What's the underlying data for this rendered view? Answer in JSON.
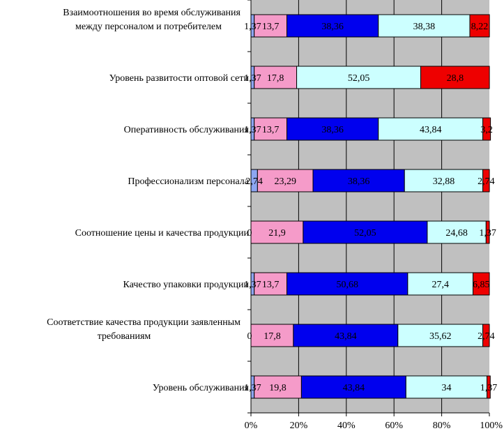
{
  "chart_data": {
    "type": "bar",
    "orientation": "horizontal",
    "stacked": "percent",
    "categories": [
      [
        "Взаимоотношения во время обслуживания",
        "между персоналом и потребителем"
      ],
      [
        "Уровень развитости оптовой сети"
      ],
      [
        "Оперативность обслуживания"
      ],
      [
        "Профессионализм персонала"
      ],
      [
        "Соотношение цены и качества продукции"
      ],
      [
        "Качество упаковки продукции"
      ],
      [
        "Соответствие качества продукции заявленным",
        "требованиям"
      ],
      [
        "Уровень обслуживания"
      ]
    ],
    "series": [
      {
        "color": "#8DA6F2",
        "values": [
          1.37,
          1.37,
          1.37,
          2.74,
          0,
          1.37,
          0,
          1.37
        ],
        "labels": [
          "1,37",
          "1,37",
          "1,37",
          "2,74",
          "0",
          "1,37",
          "0",
          "1,37"
        ]
      },
      {
        "color": "#F59BC9",
        "values": [
          13.7,
          17.8,
          13.7,
          23.29,
          21.9,
          13.7,
          17.8,
          19.8
        ],
        "labels": [
          "13,7",
          "17,8",
          "13,7",
          "23,29",
          "21,9",
          "13,7",
          "17,8",
          "19,8"
        ]
      },
      {
        "color": "#0000EE",
        "values": [
          38.36,
          0,
          38.36,
          38.36,
          52.05,
          50.68,
          43.84,
          43.84
        ],
        "labels": [
          "38,36",
          "",
          "38,36",
          "38,36",
          "52,05",
          "50,68",
          "43,84",
          "43,84"
        ]
      },
      {
        "color": "#CCFFFF",
        "values": [
          38.38,
          52.05,
          43.84,
          32.88,
          24.68,
          27.4,
          35.62,
          34
        ],
        "labels": [
          "38,38",
          "52,05",
          "43,84",
          "32,88",
          "24,68",
          "27,4",
          "35,62",
          "34"
        ]
      },
      {
        "color": "#EE0000",
        "values": [
          8.22,
          28.8,
          3.2,
          2.74,
          1.37,
          6.85,
          2.74,
          1.37
        ],
        "labels": [
          "8,22",
          "28,8",
          "3,2",
          "2,74",
          "1,37",
          "6,85",
          "2,74",
          "1,37"
        ]
      }
    ],
    "x_ticks": [
      "0%",
      "20%",
      "40%",
      "60%",
      "80%",
      "100%"
    ],
    "xlim": [
      0,
      100
    ],
    "plot_background": "#C0C0C0",
    "grid": true,
    "legend": "none"
  }
}
